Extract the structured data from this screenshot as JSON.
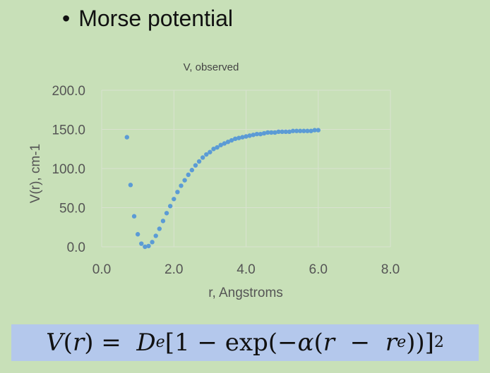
{
  "slide": {
    "bullet": "•",
    "title": "Morse potential"
  },
  "formula": {
    "V": "V",
    "r": "r",
    "D": "D",
    "e": "e",
    "one": "1",
    "minus": "−",
    "exp": "exp",
    "alpha": "α",
    "exponent": "2"
  },
  "chart_data": {
    "type": "scatter",
    "title": "V, observed",
    "xlabel": "r, Angstroms",
    "ylabel": "V(r), cm-1",
    "xlim": [
      0,
      8
    ],
    "ylim": [
      0,
      200
    ],
    "xticks": [
      "0.0",
      "2.0",
      "4.0",
      "6.0",
      "8.0"
    ],
    "yticks": [
      "0.0",
      "50.0",
      "100.0",
      "150.0",
      "200.0"
    ],
    "grid": true,
    "marker_color": "#5b9bd5",
    "series": [
      {
        "x": [
          0.7,
          0.8,
          0.9,
          1.0,
          1.1,
          1.2,
          1.3,
          1.4,
          1.5,
          1.6,
          1.7,
          1.8,
          1.9,
          2.0,
          2.1,
          2.2,
          2.3,
          2.4,
          2.5,
          2.6,
          2.7,
          2.8,
          2.9,
          3.0,
          3.1,
          3.2,
          3.3,
          3.4,
          3.5,
          3.6,
          3.7,
          3.8,
          3.9,
          4.0,
          4.1,
          4.2,
          4.3,
          4.4,
          4.5,
          4.6,
          4.7,
          4.8,
          4.9,
          5.0,
          5.1,
          5.2,
          5.3,
          5.4,
          5.5,
          5.6,
          5.7,
          5.8,
          5.9,
          6.0
        ],
        "y": [
          140,
          79,
          39,
          16,
          4,
          0,
          1,
          6,
          14,
          23,
          33,
          43,
          52,
          61,
          70,
          78,
          85,
          92,
          98,
          104,
          109,
          114,
          118,
          121,
          125,
          127,
          130,
          132,
          134,
          136,
          138,
          139,
          140,
          141,
          142,
          143,
          144,
          144,
          145,
          146,
          146,
          146,
          147,
          147,
          147,
          147,
          148,
          148,
          148,
          148,
          148,
          148,
          149,
          149
        ]
      }
    ]
  }
}
